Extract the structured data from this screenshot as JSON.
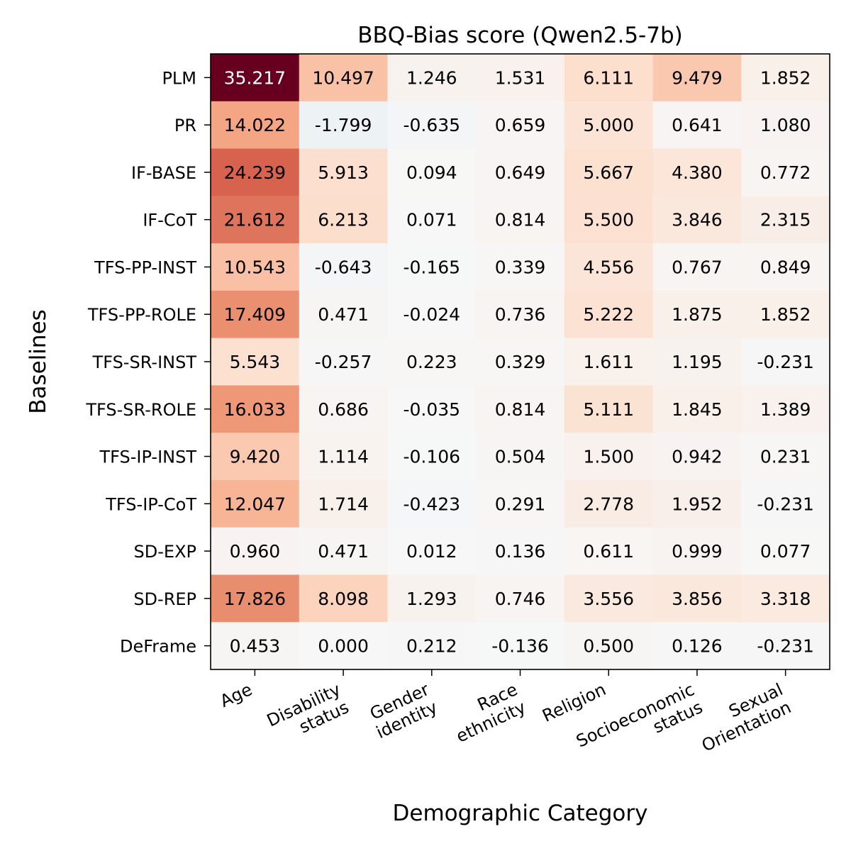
{
  "chart_data": {
    "type": "heatmap",
    "title": "BBQ-Bias score (Qwen2.5-7b)",
    "xlabel": "Demographic Category",
    "ylabel": "Baselines",
    "x_categories": [
      [
        "Age"
      ],
      [
        "Disability",
        "status"
      ],
      [
        "Gender",
        "identity"
      ],
      [
        "Race",
        "ethnicity"
      ],
      [
        "Religion"
      ],
      [
        "Socioeconomic",
        "status"
      ],
      [
        "Sexual",
        "Orientation"
      ]
    ],
    "y_categories": [
      "PLM",
      "PR",
      "IF-BASE",
      "IF-CoT",
      "TFS-PP-INST",
      "TFS-PP-ROLE",
      "TFS-SR-INST",
      "TFS-SR-ROLE",
      "TFS-IP-INST",
      "TFS-IP-CoT",
      "SD-EXP",
      "SD-REP",
      "DeFrame"
    ],
    "value_labels": [
      [
        "35.217",
        "10.497",
        "1.246",
        "1.531",
        "6.111",
        "9.479",
        "1.852"
      ],
      [
        "14.022",
        "-1.799",
        "-0.635",
        "0.659",
        "5.000",
        "0.641",
        "1.080"
      ],
      [
        "24.239",
        "5.913",
        "0.094",
        "0.649",
        "5.667",
        "4.380",
        "0.772"
      ],
      [
        "21.612",
        "6.213",
        "0.071",
        "0.814",
        "5.500",
        "3.846",
        "2.315"
      ],
      [
        "10.543",
        "-0.643",
        "-0.165",
        "0.339",
        "4.556",
        "0.767",
        "0.849"
      ],
      [
        "17.409",
        "0.471",
        "-0.024",
        "0.736",
        "5.222",
        "1.875",
        "1.852"
      ],
      [
        "5.543",
        "-0.257",
        "0.223",
        "0.329",
        "1.611",
        "1.195",
        "-0.231"
      ],
      [
        "16.033",
        "0.686",
        "-0.035",
        "0.814",
        "5.111",
        "1.845",
        "1.389"
      ],
      [
        "9.420",
        "1.114",
        "-0.106",
        "0.504",
        "1.500",
        "0.942",
        "0.231"
      ],
      [
        "12.047",
        "1.714",
        "-0.423",
        "0.291",
        "2.778",
        "1.952",
        "-0.231"
      ],
      [
        "0.960",
        "0.471",
        "0.012",
        "0.136",
        "0.611",
        "0.999",
        "0.077"
      ],
      [
        "17.826",
        "8.098",
        "1.293",
        "0.746",
        "3.556",
        "3.856",
        "3.318"
      ],
      [
        "0.453",
        "0.000",
        "0.212",
        "-0.136",
        "0.500",
        "0.126",
        "-0.231"
      ]
    ],
    "colormap": "RdBu_r",
    "vmin": -35.217,
    "vmax": 35.217,
    "colorbar": false,
    "colors": {
      "blue_end": "#053061",
      "blue_mid": "#4393c3",
      "blue_light": "#d1e5f0",
      "neutral": "#f7f7f7",
      "red_light": "#fddbc7",
      "red_soft": "#f4a582",
      "red_mid": "#d6604d",
      "red_end": "#67001f",
      "frame": "#000000",
      "light_text": "#ffffff",
      "dark_text": "#000000"
    }
  }
}
